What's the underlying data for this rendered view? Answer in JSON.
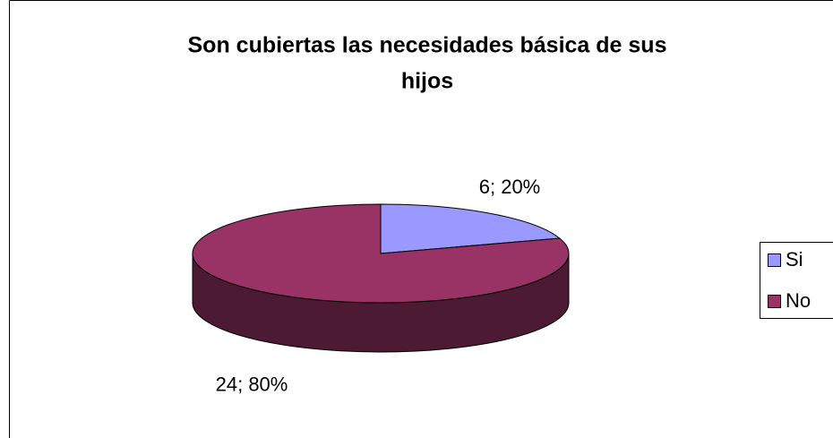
{
  "chart_data": {
    "type": "pie3d",
    "title": [
      "Son cubiertas las necesidades básica de sus",
      "hijos"
    ],
    "categories": [
      "Si",
      "No"
    ],
    "values": [
      6,
      24
    ],
    "value_labels": [
      "6; 20%",
      "24; 80%"
    ],
    "colors": [
      "#9999ff",
      "#993366"
    ],
    "legend": "right"
  }
}
